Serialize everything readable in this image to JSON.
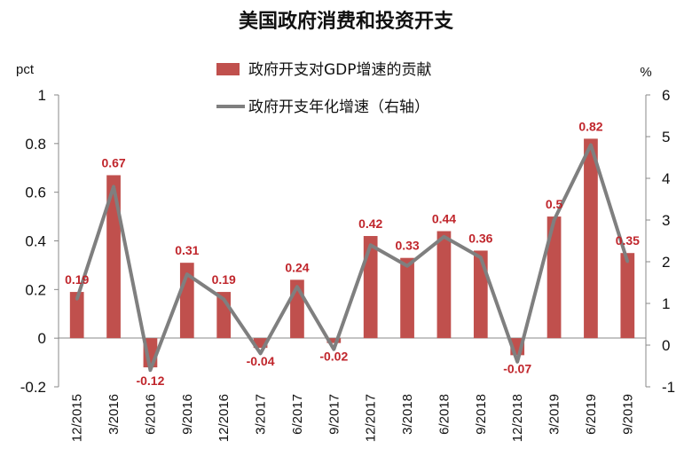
{
  "chart_data": {
    "type": "bar+line",
    "title": "美国政府消费和投资开支",
    "ylabel_left": "pct",
    "ylabel_right": "%",
    "ylim_left": [
      -0.2,
      1
    ],
    "ylim_right": [
      -1,
      6
    ],
    "yticks_left": [
      "1",
      "0.8",
      "0.6",
      "0.4",
      "0.2",
      "0",
      "-0.2"
    ],
    "yticks_right": [
      "6",
      "5",
      "4",
      "3",
      "2",
      "1",
      "0",
      "-1"
    ],
    "categories": [
      "12/2015",
      "3/2016",
      "6/2016",
      "9/2016",
      "12/2016",
      "3/2017",
      "6/2017",
      "9/2017",
      "12/2017",
      "3/2018",
      "6/2018",
      "9/2018",
      "12/2018",
      "3/2019",
      "6/2019",
      "9/2019"
    ],
    "legend_position": "top-center",
    "series": [
      {
        "name": "政府开支对GDP增速的贡献",
        "type": "bar",
        "axis": "left",
        "color": "#c0504d",
        "values": [
          0.19,
          0.67,
          -0.12,
          0.31,
          0.19,
          -0.04,
          0.24,
          -0.02,
          0.42,
          0.33,
          0.44,
          0.36,
          -0.07,
          0.5,
          0.82,
          0.35
        ],
        "labels": [
          "0.19",
          "0.67",
          "-0.12",
          "0.31",
          "0.19",
          "-0.04",
          "0.24",
          "-0.02",
          "0.42",
          "0.33",
          "0.44",
          "0.36",
          "-0.07",
          "0.5",
          "0.82",
          "0.35"
        ]
      },
      {
        "name": "政府开支年化增速（右轴）",
        "type": "line",
        "axis": "right",
        "color": "#7f7f7f",
        "values": [
          1.1,
          3.8,
          -0.6,
          1.7,
          1.1,
          -0.2,
          1.4,
          -0.1,
          2.4,
          1.9,
          2.6,
          2.1,
          -0.4,
          3.0,
          4.8,
          2.0
        ]
      }
    ]
  }
}
